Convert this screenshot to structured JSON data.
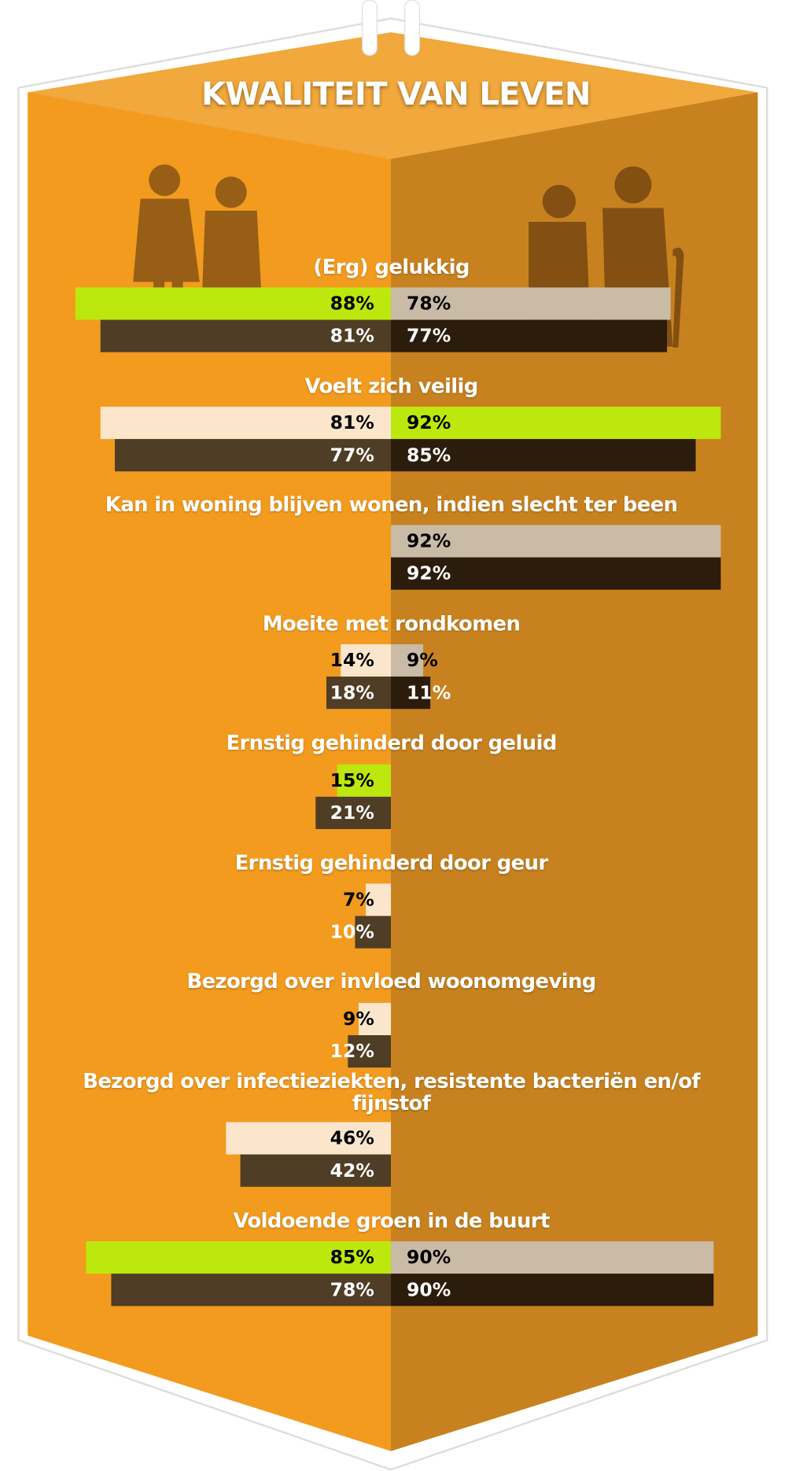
{
  "chart_data": {
    "type": "diverging-bar",
    "title": "KWALITEIT VAN LEVEN",
    "categories": [
      "(Erg) gelukkig",
      "Voelt zich veilig",
      "Kan in woning blijven wonen, indien slecht ter been",
      "Moeite met rondkomen",
      "Ernstig gehinderd door geluid",
      "Ernstig gehinderd door geur",
      "Bezorgd over invloed woonomgeving",
      "Bezorgd over infectieziekten, resistente bacteriën en/of fijnstof",
      "Voldoende groen in de buurt"
    ],
    "series": [
      {
        "side": "left",
        "values": [
          88,
          81,
          null,
          14,
          15,
          7,
          9,
          46,
          85
        ],
        "value_labels": [
          "88%",
          "81%",
          null,
          "14%",
          "15%",
          "7%",
          "9%",
          "46%",
          "85%"
        ],
        "colors": [
          "#bde80e",
          "#fbe6cc",
          null,
          "#fbe6cc",
          "#bde80e",
          "#fbe6cc",
          "#fbe6cc",
          "#fbe6cc",
          "#bde80e"
        ]
      },
      {
        "side": "left",
        "values": [
          81,
          77,
          null,
          18,
          21,
          10,
          12,
          42,
          78
        ],
        "value_labels": [
          "81%",
          "77%",
          null,
          "18%",
          "21%",
          "10%",
          "12%",
          "42%",
          "78%"
        ],
        "colors": [
          "#4f3d25",
          "#4f3d25",
          null,
          "#4f3d25",
          "#4f3d25",
          "#4f3d25",
          "#4f3d25",
          "#4f3d25",
          "#4f3d25"
        ]
      },
      {
        "side": "right",
        "values": [
          78,
          92,
          92,
          9,
          null,
          null,
          null,
          null,
          90
        ],
        "value_labels": [
          "78%",
          "92%",
          "92%",
          "9%",
          null,
          null,
          null,
          null,
          "90%"
        ],
        "colors": [
          "#c9bba6",
          "#bde80e",
          "#c9bba6",
          "#c9bba6",
          null,
          null,
          null,
          null,
          "#c9bba6"
        ]
      },
      {
        "side": "right",
        "values": [
          77,
          85,
          92,
          11,
          null,
          null,
          null,
          null,
          90
        ],
        "value_labels": [
          "77%",
          "85%",
          "92%",
          "11%",
          null,
          null,
          null,
          null,
          "90%"
        ],
        "colors": [
          "#2b1c0c",
          "#2b1c0c",
          "#2b1c0c",
          "#2b1c0c",
          null,
          null,
          null,
          null,
          "#2b1c0c"
        ]
      }
    ]
  }
}
